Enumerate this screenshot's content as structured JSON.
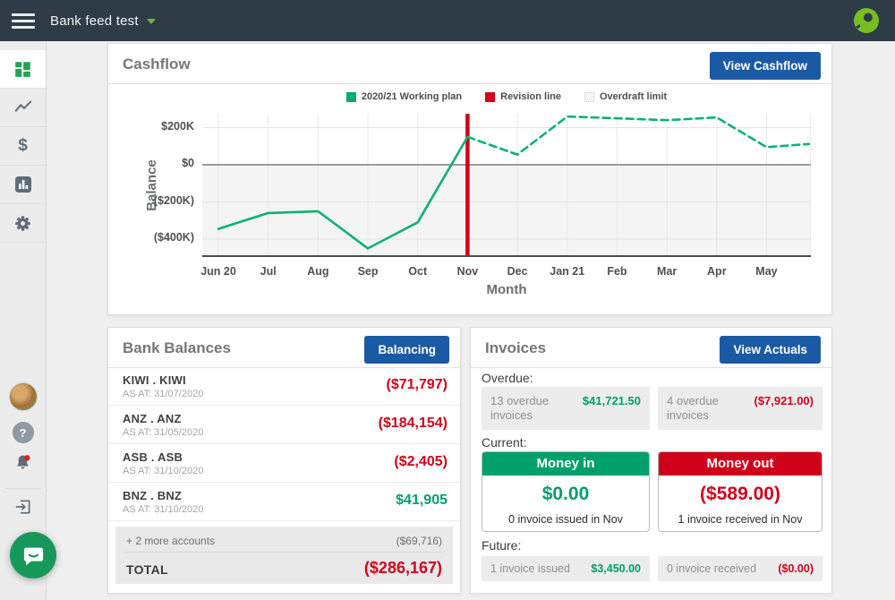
{
  "navbar": {
    "title": "Bank feed test"
  },
  "cashflow_card": {
    "title": "Cashflow",
    "button": "View Cashflow"
  },
  "chart_data": {
    "type": "line",
    "title": "Cashflow",
    "xlabel": "Month",
    "ylabel": "Balance",
    "x_ticks": [
      "Jun 20",
      "Jul",
      "Aug",
      "Sep",
      "Oct",
      "Nov",
      "Dec",
      "Jan 21",
      "Feb",
      "Mar",
      "Apr",
      "May"
    ],
    "y_ticks": [
      {
        "label": "$200K",
        "value": 200
      },
      {
        "label": "$0",
        "value": 0
      },
      {
        "label": "($200K)",
        "value": -200
      },
      {
        "label": "($400K)",
        "value": -400
      }
    ],
    "value_unit": "thousands of dollars",
    "ylim": [
      -490,
      265
    ],
    "grid": true,
    "legend_position": "top",
    "legend": [
      {
        "label": "2020/21 Working plan",
        "swatch_color": "#00ac6b",
        "swatch_style": "solid"
      },
      {
        "label": "Revision line",
        "swatch_color": "#d0021b",
        "swatch_style": "solid"
      },
      {
        "label": "Overdraft limit",
        "swatch_color": "#f2f2f2",
        "swatch_style": "dotted"
      }
    ],
    "series": [
      {
        "name": "2020/21 Working plan (actual)",
        "line": "solid",
        "color": "#0cb271",
        "points": [
          [
            0,
            -345
          ],
          [
            1,
            -260
          ],
          [
            2,
            -250
          ],
          [
            3,
            -450
          ],
          [
            4,
            -310
          ],
          [
            5,
            150
          ]
        ]
      },
      {
        "name": "2020/21 Working plan (forecast)",
        "line": "dashed",
        "color": "#0cb271",
        "points": [
          [
            5,
            150
          ],
          [
            6,
            55
          ],
          [
            7,
            260
          ],
          [
            8,
            250
          ],
          [
            9,
            240
          ],
          [
            10,
            255
          ],
          [
            11,
            95
          ],
          [
            11.85,
            112
          ]
        ]
      }
    ],
    "revision_line": {
      "month_index": 5,
      "at_label": "Nov",
      "color": "#d0021b"
    },
    "zero_line_value": 0
  },
  "bank_balances": {
    "title": "Bank Balances",
    "button": "Balancing",
    "accounts": [
      {
        "name": "KIWI . KIWI",
        "as_at": "AS AT: 31/07/2020",
        "value": "($71,797)"
      },
      {
        "name": "ANZ . ANZ",
        "as_at": "AS AT: 31/05/2020",
        "value": "($184,154)"
      },
      {
        "name": "ASB . ASB",
        "as_at": "AS AT: 31/10/2020",
        "value": "($2,405)"
      },
      {
        "name": "BNZ . BNZ",
        "as_at": "AS AT: 31/10/2020",
        "value": "$41,905"
      }
    ],
    "more_accounts": {
      "label": "+ 2 more accounts",
      "value": "($69,716)"
    },
    "total": {
      "label": "TOTAL",
      "value": "($286,167)"
    }
  },
  "invoices": {
    "title": "Invoices",
    "button": "View Actuals",
    "overdue_label": "Overdue:",
    "overdue": [
      {
        "label": "13 overdue invoices",
        "value": "$41,721.50"
      },
      {
        "label": "4 overdue invoices",
        "value": "($7,921.00)"
      }
    ],
    "current_label": "Current:",
    "money_in": {
      "header": "Money in",
      "amount": "$0.00",
      "note": "0 invoice issued in Nov"
    },
    "money_out": {
      "header": "Money out",
      "amount": "($589.00)",
      "note": "1 invoice received in Nov"
    },
    "future_label": "Future:",
    "future": [
      {
        "label": "1 invoice issued",
        "value": "$3,450.00"
      },
      {
        "label": "0 invoice received",
        "value": "($0.00)"
      }
    ]
  },
  "colors": {
    "positive_green": "#00a06a",
    "negative_red": "#d0021b",
    "button_blue": "#1a5aa5",
    "navbar_dark": "#2e3c48",
    "brand_green": "#78be20"
  }
}
